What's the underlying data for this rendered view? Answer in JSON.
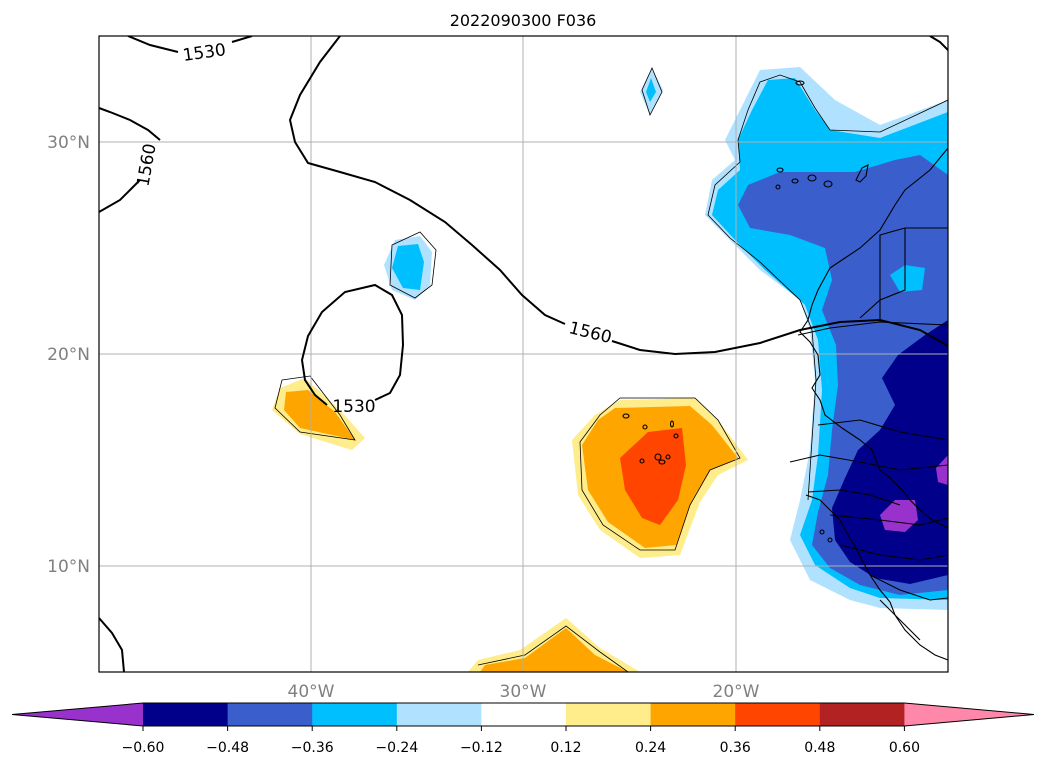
{
  "title": "2022090300 F036",
  "map": {
    "lon_range": [
      -50,
      -10
    ],
    "lat_range": [
      5,
      35
    ],
    "lat_ticks": [
      {
        "value": 30,
        "label": "30°N"
      },
      {
        "value": 20,
        "label": "20°N"
      },
      {
        "value": 10,
        "label": "10°N"
      }
    ],
    "lon_ticks": [
      {
        "value": -40,
        "label": "40°W"
      },
      {
        "value": -30,
        "label": "30°W"
      },
      {
        "value": -20,
        "label": "20°W"
      }
    ],
    "gridlines": true,
    "contour_labels": [
      "1530",
      "1560",
      "1530",
      "1560"
    ]
  },
  "colorbar": {
    "orientation": "horizontal",
    "extend": "both",
    "levels": [
      -0.6,
      -0.48,
      -0.36,
      -0.24,
      -0.12,
      0.12,
      0.24,
      0.36,
      0.48,
      0.6
    ],
    "tick_labels": [
      "−0.60",
      "−0.48",
      "−0.36",
      "−0.24",
      "−0.12",
      "0.12",
      "0.24",
      "0.36",
      "0.48",
      "0.60"
    ],
    "colors": [
      "#9932cc",
      "#00008b",
      "#3a5fcd",
      "#00bfff",
      "#b0e2ff",
      "#ffffff",
      "#ffec8b",
      "#ffa500",
      "#ff4500",
      "#b22222",
      "#ff88aa"
    ]
  }
}
